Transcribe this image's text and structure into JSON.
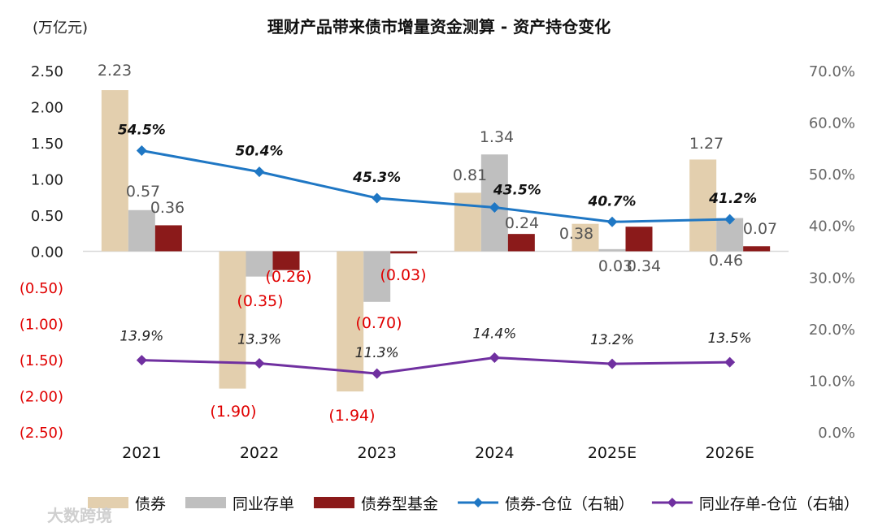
{
  "chart_data": {
    "type": "bar",
    "title": "理财产品带来债市增量资金测算 - 资产持仓变化",
    "unit_label": "(万亿元)",
    "categories": [
      "2021",
      "2022",
      "2023",
      "2024",
      "2025E",
      "2026E"
    ],
    "left_axis": {
      "ylim": [
        -2.5,
        2.5
      ],
      "ticks": [
        2.5,
        2.0,
        1.5,
        1.0,
        0.5,
        0.0,
        -0.5,
        -1.0,
        -1.5,
        -2.0,
        -2.5
      ],
      "tick_labels": [
        "2.50",
        "2.00",
        "1.50",
        "1.00",
        "0.50",
        "0.00",
        "(0.50)",
        "(1.00)",
        "(1.50)",
        "(2.00)",
        "(2.50)"
      ]
    },
    "right_axis": {
      "ylim": [
        0,
        70
      ],
      "ticks": [
        70,
        60,
        50,
        40,
        30,
        20,
        10,
        0
      ],
      "tick_labels": [
        "70.0%",
        "60.0%",
        "50.0%",
        "40.0%",
        "30.0%",
        "20.0%",
        "10.0%",
        "0.0%"
      ]
    },
    "bar_series": [
      {
        "name": "债券",
        "color": "#e3cfae",
        "values": [
          2.23,
          -1.9,
          -1.94,
          0.81,
          0.38,
          1.27
        ],
        "labels": [
          "2.23",
          "(1.90)",
          "(1.94)",
          "0.81",
          "0.38",
          "1.27"
        ]
      },
      {
        "name": "同业存单",
        "color": "#bfbfbf",
        "values": [
          0.57,
          -0.35,
          -0.7,
          1.34,
          0.03,
          0.46
        ],
        "labels": [
          "0.57",
          "(0.35)",
          "(0.70)",
          "1.34",
          "0.03",
          "0.46"
        ]
      },
      {
        "name": "债券型基金",
        "color": "#8b1a1a",
        "values": [
          0.36,
          -0.26,
          -0.03,
          0.24,
          0.34,
          0.07
        ],
        "labels": [
          "0.36",
          "(0.26)",
          "(0.03)",
          "0.24",
          "0.34",
          "0.07"
        ]
      }
    ],
    "line_series": [
      {
        "name": "债券-仓位（右轴）",
        "color": "#1f77c4",
        "values": [
          54.5,
          50.4,
          45.3,
          43.5,
          40.7,
          41.2
        ],
        "labels": [
          "54.5%",
          "50.4%",
          "45.3%",
          "43.5%",
          "40.7%",
          "41.2%"
        ]
      },
      {
        "name": "同业存单-仓位（右轴）",
        "color": "#7030a0",
        "values": [
          13.9,
          13.3,
          11.3,
          14.4,
          13.2,
          13.5
        ],
        "labels": [
          "13.9%",
          "13.3%",
          "11.3%",
          "14.4%",
          "13.2%",
          "13.5%"
        ]
      }
    ],
    "legend_position": "bottom",
    "grid": false
  },
  "watermark": "大数跨境"
}
